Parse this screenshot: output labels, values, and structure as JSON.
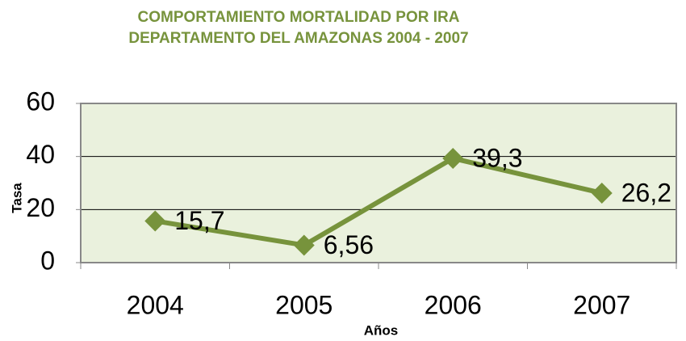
{
  "chart_data": {
    "type": "line",
    "title": [
      "COMPORTAMIENTO MORTALIDAD POR IRA",
      "DEPARTAMENTO DEL AMAZONAS 2004 - 2007"
    ],
    "x_label": "Años",
    "y_label": "Tasa",
    "categories": [
      "2004",
      "2005",
      "2006",
      "2007"
    ],
    "series": [
      {
        "name": "Tasa",
        "color": "#77933c",
        "values": [
          15.7,
          6.56,
          39.3,
          26.2
        ],
        "value_labels": [
          "15,7",
          "6,56",
          "39,3",
          "26,2"
        ]
      }
    ],
    "ylim": [
      0,
      60
    ],
    "yticks": [
      0,
      20,
      40,
      60
    ],
    "grid": true
  }
}
